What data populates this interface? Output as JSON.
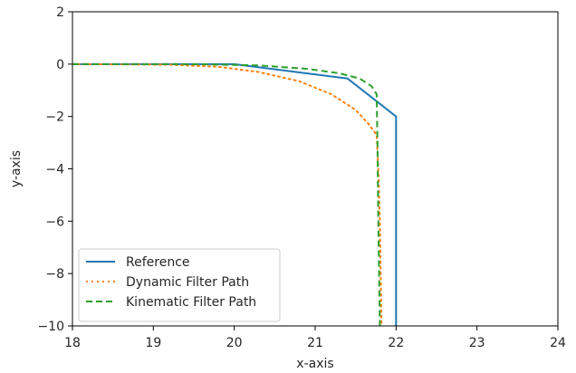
{
  "chart_data": {
    "type": "line",
    "xlabel": "x-axis",
    "ylabel": "y-axis",
    "xlim": [
      18,
      24
    ],
    "ylim": [
      -10,
      2
    ],
    "xticks": [
      18,
      19,
      20,
      21,
      22,
      23,
      24
    ],
    "yticks": [
      2,
      0,
      -2,
      -4,
      -6,
      -8,
      -10
    ],
    "xtick_labels": [
      "18",
      "19",
      "20",
      "21",
      "22",
      "23",
      "24"
    ],
    "ytick_labels": [
      "2",
      "0",
      "−2",
      "−4",
      "−6",
      "−8",
      "−10"
    ],
    "grid": false,
    "legend_position": "lower-left",
    "series": [
      {
        "name": "Reference",
        "color": "#1f77b4",
        "style": "solid",
        "points": [
          [
            18,
            0
          ],
          [
            20,
            0
          ],
          [
            21.4,
            -0.55
          ],
          [
            22,
            -2
          ],
          [
            22,
            -10
          ]
        ]
      },
      {
        "name": "Dynamic Filter Path",
        "color": "#ff7f0e",
        "style": "dotted",
        "points": [
          [
            18,
            0
          ],
          [
            19.2,
            -0.02
          ],
          [
            19.8,
            -0.1
          ],
          [
            20.3,
            -0.3
          ],
          [
            20.8,
            -0.65
          ],
          [
            21.2,
            -1.15
          ],
          [
            21.5,
            -1.75
          ],
          [
            21.65,
            -2.25
          ],
          [
            21.76,
            -2.7
          ],
          [
            21.78,
            -4
          ],
          [
            21.8,
            -6
          ],
          [
            21.81,
            -8
          ],
          [
            21.82,
            -10
          ]
        ]
      },
      {
        "name": "Kinematic Filter Path",
        "color": "#2ca02c",
        "style": "dashed",
        "points": [
          [
            18,
            0
          ],
          [
            19.5,
            0
          ],
          [
            20.3,
            -0.05
          ],
          [
            20.9,
            -0.18
          ],
          [
            21.3,
            -0.35
          ],
          [
            21.55,
            -0.55
          ],
          [
            21.7,
            -0.85
          ],
          [
            21.76,
            -1.15
          ],
          [
            21.77,
            -3
          ],
          [
            21.78,
            -6
          ],
          [
            21.79,
            -8
          ],
          [
            21.8,
            -10
          ]
        ]
      }
    ]
  }
}
